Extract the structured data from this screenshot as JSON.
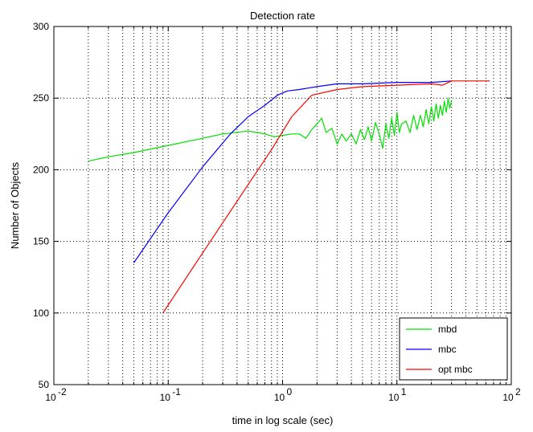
{
  "chart_data": {
    "type": "line",
    "title": "Detection rate",
    "xlabel": "time in log scale (sec)",
    "ylabel": "Number of Objects",
    "x_scale": "log",
    "xlim": [
      0.01,
      100
    ],
    "ylim": [
      50,
      300
    ],
    "x_ticks": [
      {
        "base": "10",
        "exp": "-2"
      },
      {
        "base": "10",
        "exp": "-1"
      },
      {
        "base": "10",
        "exp": "0"
      },
      {
        "base": "10",
        "exp": "1"
      },
      {
        "base": "10",
        "exp": "2"
      }
    ],
    "y_ticks": [
      50,
      100,
      150,
      200,
      250,
      300
    ],
    "grid": true,
    "legend_position": "bottom-right",
    "series": [
      {
        "name": "mbd",
        "color": "#00e000",
        "x": [
          0.02,
          0.03,
          0.05,
          0.1,
          0.2,
          0.3,
          0.5,
          0.6,
          0.7,
          0.85,
          1.0,
          1.2,
          1.4,
          1.6,
          1.8,
          2.0,
          2.2,
          2.4,
          2.7,
          3.0,
          3.3,
          3.6,
          4.0,
          4.4,
          4.8,
          5.2,
          5.6,
          6.0,
          6.5,
          7.0,
          7.5,
          8.0,
          8.5,
          9.0,
          9.5,
          10.0,
          10.5,
          11,
          12,
          13,
          14,
          15,
          16,
          17,
          18,
          19,
          20,
          21,
          22,
          23,
          24,
          25,
          26,
          27,
          28,
          29,
          30
        ],
        "y": [
          206,
          209,
          212,
          217,
          222,
          225,
          227,
          226,
          225,
          223,
          224,
          225,
          225,
          222,
          228,
          232,
          236,
          226,
          229,
          218,
          225,
          220,
          225,
          218,
          228,
          221,
          230,
          220,
          233,
          225,
          215,
          232,
          222,
          236,
          224,
          240,
          226,
          232,
          234,
          226,
          238,
          228,
          238,
          230,
          242,
          232,
          244,
          234,
          246,
          236,
          245,
          238,
          248,
          240,
          250,
          243,
          248
        ]
      },
      {
        "name": "mbc",
        "color": "#0000ff",
        "x": [
          0.05,
          0.1,
          0.2,
          0.35,
          0.5,
          0.7,
          0.9,
          1.1,
          1.4,
          2.0,
          3.0,
          5.0,
          10.0,
          20.0,
          30.0
        ],
        "y": [
          135,
          170,
          202,
          225,
          237,
          245,
          252,
          255,
          256,
          258,
          260,
          260,
          261,
          261,
          262
        ]
      },
      {
        "name": "opt mbc",
        "color": "#ff0000",
        "x": [
          0.09,
          0.2,
          0.4,
          0.8,
          1.2,
          1.8,
          3.0,
          5.0,
          10.0,
          20.0,
          25.0,
          30.0,
          65.0
        ],
        "y": [
          100,
          142,
          178,
          214,
          237,
          252,
          256,
          258,
          259,
          260,
          259,
          262,
          262
        ]
      }
    ]
  }
}
